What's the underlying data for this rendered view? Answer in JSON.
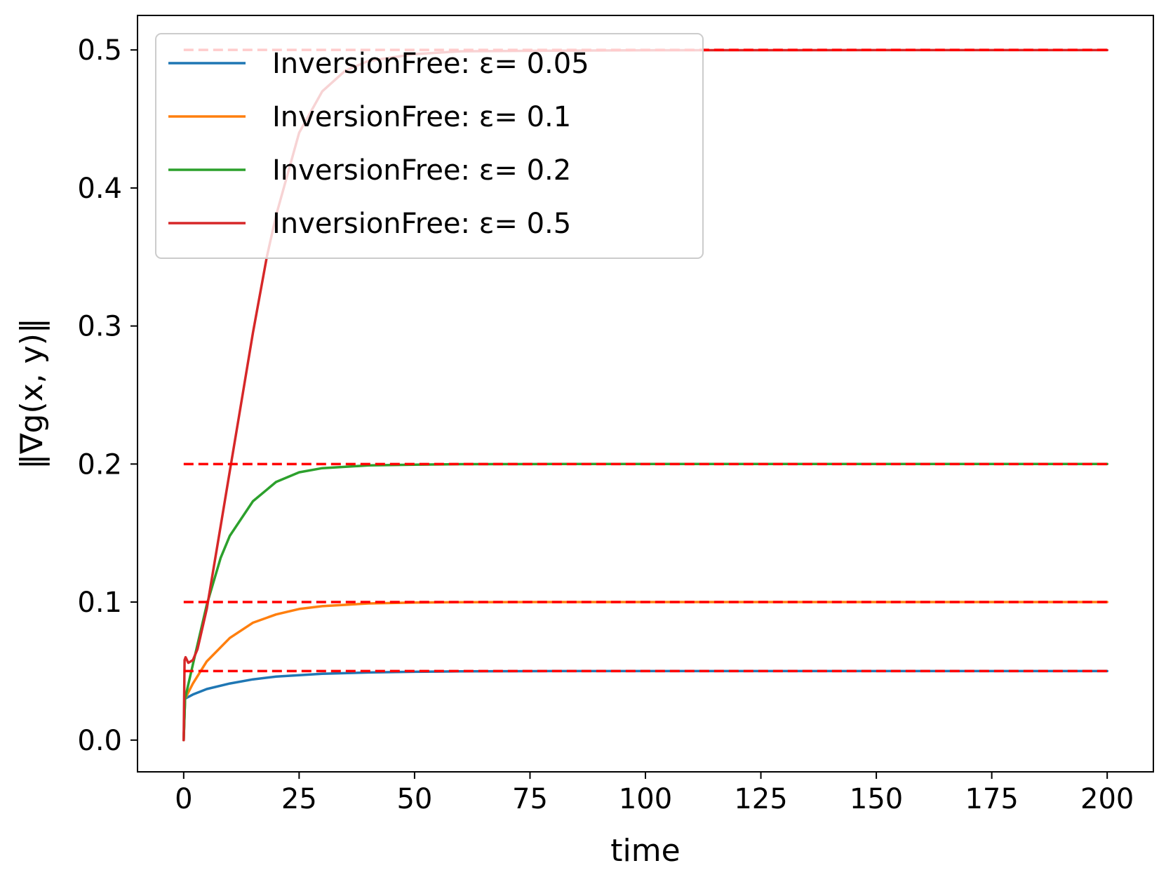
{
  "chart_data": {
    "type": "line",
    "title": "",
    "xlabel": "time",
    "ylabel": "‖∇g(x, y)‖",
    "xlim": [
      -10,
      210
    ],
    "ylim": [
      -0.023,
      0.525
    ],
    "xticks": [
      0,
      25,
      50,
      75,
      100,
      125,
      150,
      175,
      200
    ],
    "xtick_labels": [
      "0",
      "25",
      "50",
      "75",
      "100",
      "125",
      "150",
      "175",
      "200"
    ],
    "yticks": [
      0.0,
      0.1,
      0.2,
      0.3,
      0.4,
      0.5
    ],
    "ytick_labels": [
      "0.0",
      "0.1",
      "0.2",
      "0.3",
      "0.4",
      "0.5"
    ],
    "grid": false,
    "legend_position": "upper-left",
    "series": [
      {
        "name": "InversionFree: ε= 0.05",
        "color": "#1f77b4",
        "x": [
          0,
          0.3,
          2,
          5,
          10,
          15,
          20,
          25,
          30,
          40,
          50,
          60,
          80,
          100,
          150,
          200
        ],
        "y": [
          0.0,
          0.03,
          0.033,
          0.037,
          0.041,
          0.044,
          0.046,
          0.047,
          0.048,
          0.049,
          0.0495,
          0.0498,
          0.05,
          0.05,
          0.05,
          0.05
        ]
      },
      {
        "name": "InversionFree: ε= 0.1",
        "color": "#ff7f0e",
        "x": [
          0,
          0.3,
          2,
          5,
          10,
          15,
          20,
          25,
          30,
          40,
          50,
          60,
          80,
          100,
          150,
          200
        ],
        "y": [
          0.0,
          0.03,
          0.041,
          0.057,
          0.074,
          0.085,
          0.091,
          0.095,
          0.097,
          0.099,
          0.0996,
          0.0999,
          0.1,
          0.1,
          0.1,
          0.1
        ]
      },
      {
        "name": "InversionFree: ε= 0.2",
        "color": "#2ca02c",
        "x": [
          0,
          0.3,
          2,
          5,
          8,
          10,
          15,
          20,
          25,
          30,
          40,
          50,
          60,
          80,
          100,
          150,
          200
        ],
        "y": [
          0.0,
          0.03,
          0.055,
          0.098,
          0.132,
          0.148,
          0.173,
          0.187,
          0.194,
          0.197,
          0.199,
          0.1995,
          0.1999,
          0.2,
          0.2,
          0.2,
          0.2
        ]
      },
      {
        "name": "InversionFree: ε= 0.5",
        "color": "#d62728",
        "x": [
          0,
          0.2,
          0.4,
          1,
          2,
          3,
          5,
          8,
          10,
          12,
          15,
          18,
          20,
          25,
          30,
          35,
          40,
          50,
          60,
          80,
          100,
          150,
          200
        ],
        "y": [
          0.0,
          0.058,
          0.06,
          0.056,
          0.058,
          0.066,
          0.095,
          0.155,
          0.195,
          0.235,
          0.295,
          0.35,
          0.38,
          0.44,
          0.47,
          0.485,
          0.492,
          0.497,
          0.499,
          0.4995,
          0.4998,
          0.4999,
          0.4999
        ]
      }
    ],
    "reference_lines": {
      "color": "#ff0000",
      "style": "dashed",
      "x_range": [
        0,
        200
      ],
      "y": [
        0.05,
        0.1,
        0.2,
        0.5
      ]
    },
    "legend_entries": [
      "InversionFree: ε= 0.05",
      "InversionFree: ε= 0.1",
      "InversionFree: ε= 0.2",
      "InversionFree: ε= 0.5"
    ]
  }
}
